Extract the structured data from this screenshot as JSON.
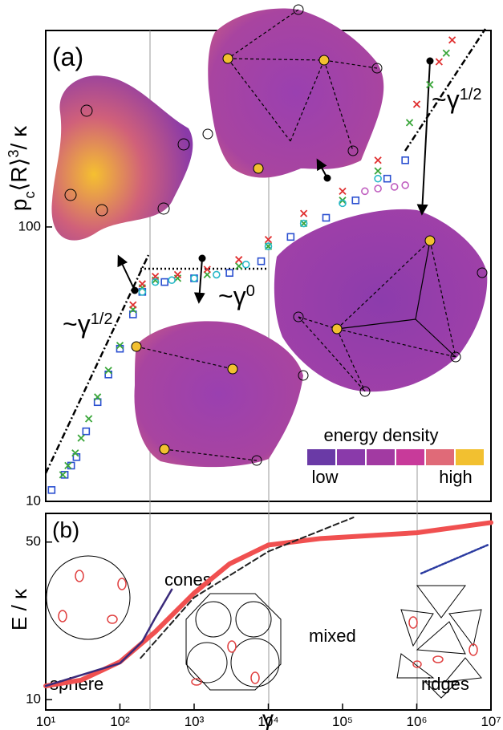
{
  "chart_data": [
    {
      "type": "scatter",
      "panel_label": "(a)",
      "ylabel": {
        "base": "p",
        "sub": "c",
        "mid": "⟨R⟩",
        "sup": "3",
        "end": "/ κ"
      },
      "xlog": true,
      "ylog": true,
      "xlim": [
        10,
        10000000
      ],
      "ylim": [
        10,
        520
      ],
      "yticks": [
        10,
        100
      ],
      "series": [
        {
          "marker": "square",
          "color": "#2a4fd0",
          "x": [
            12,
            18,
            22,
            26,
            35,
            50,
            70,
            100,
            150,
            200,
            400,
            1000,
            3000,
            8000,
            20000,
            60000,
            150000,
            400000,
            700000
          ],
          "values": [
            11,
            12.5,
            13.5,
            14.5,
            18,
            23,
            29,
            36,
            48,
            58,
            63,
            65,
            68,
            75,
            92,
            108,
            125,
            150,
            175
          ]
        },
        {
          "marker": "cross",
          "color": "#3aa63a",
          "x": [
            17,
            20,
            25,
            30,
            38,
            50,
            70,
            100,
            150,
            200,
            300,
            600,
            1500,
            4000,
            10000,
            30000,
            100000,
            300000,
            800000,
            1500000,
            2500000
          ],
          "values": [
            12.5,
            13.5,
            15,
            17,
            20,
            24,
            30,
            37,
            50,
            60,
            64,
            65,
            67,
            72,
            85,
            103,
            125,
            160,
            240,
            330,
            430
          ]
        },
        {
          "marker": "cross",
          "color": "#e03030",
          "x": [
            150,
            200,
            300,
            600,
            1500,
            4000,
            10000,
            30000,
            100000,
            300000,
            1000000,
            2000000,
            3000000
          ],
          "values": [
            52,
            62,
            66,
            67,
            70,
            76,
            90,
            112,
            135,
            175,
            280,
            400,
            480
          ]
        },
        {
          "marker": "circle",
          "color": "#28b8c8",
          "x": [
            200,
            300,
            500,
            1000,
            2000,
            5000,
            10000,
            30000,
            100000,
            300000
          ],
          "values": [
            58,
            63,
            64,
            65,
            67,
            73,
            85,
            103,
            122,
            150
          ]
        },
        {
          "marker": "circle",
          "color": "#c060c0",
          "x": [
            200000,
            300000,
            500000,
            700000
          ],
          "values": [
            135,
            138,
            140,
            142
          ]
        }
      ],
      "annotations": [
        {
          "text": "~γ",
          "sup": "1/2"
        },
        {
          "text": "~γ",
          "sup": "0"
        },
        {
          "text": "~γ",
          "sup": "1/2"
        }
      ],
      "colorbar": {
        "title": "energy density",
        "low": "low",
        "high": "high",
        "colors": [
          "#6a3aa6",
          "#8a3aaa",
          "#a23aa2",
          "#c83a9a",
          "#e06a78",
          "#f2c030"
        ]
      }
    },
    {
      "type": "line",
      "panel_label": "(b)",
      "ylabel": "E / κ",
      "xlabel": "γ",
      "xlog": true,
      "ylog": true,
      "xlim": [
        10,
        10000000
      ],
      "ylim": [
        9,
        67
      ],
      "yticks": [
        10,
        50
      ],
      "xticks": [
        {
          "value": 10,
          "label": "10¹"
        },
        {
          "value": 100,
          "label": "10²"
        },
        {
          "value": 1000,
          "label": "10³"
        },
        {
          "value": 10000,
          "label": "10⁴"
        },
        {
          "value": 100000,
          "label": "10⁵"
        },
        {
          "value": 1000000,
          "label": "10⁶"
        },
        {
          "value": 10000000,
          "label": "10⁷"
        }
      ],
      "series": [
        {
          "color": "#f05050",
          "style": "thick",
          "x": [
            10,
            30,
            100,
            300,
            1000,
            3000,
            10000,
            50000,
            1000000,
            10000000
          ],
          "values": [
            11.5,
            12.2,
            14.7,
            20,
            29.7,
            40,
            48.5,
            51.8,
            55,
            61
          ]
        },
        {
          "color": "#3a2a7a",
          "style": "solid",
          "x": [
            10,
            100,
            200,
            300,
            500
          ],
          "values": [
            11.5,
            14.5,
            18.1,
            23.1,
            30.8
          ]
        },
        {
          "color": "#222222",
          "style": "dashed",
          "x": [
            190,
            1000,
            10000,
            140000
          ],
          "values": [
            15.3,
            28.4,
            45.4,
            64.3
          ]
        },
        {
          "color": "#2a3aa0",
          "style": "dotted",
          "x": [
            1150000,
            9000000
          ],
          "values": [
            36.3,
            48.5
          ]
        }
      ],
      "labels": [
        "sphere",
        "cones",
        "mixed",
        "ridges"
      ]
    }
  ]
}
